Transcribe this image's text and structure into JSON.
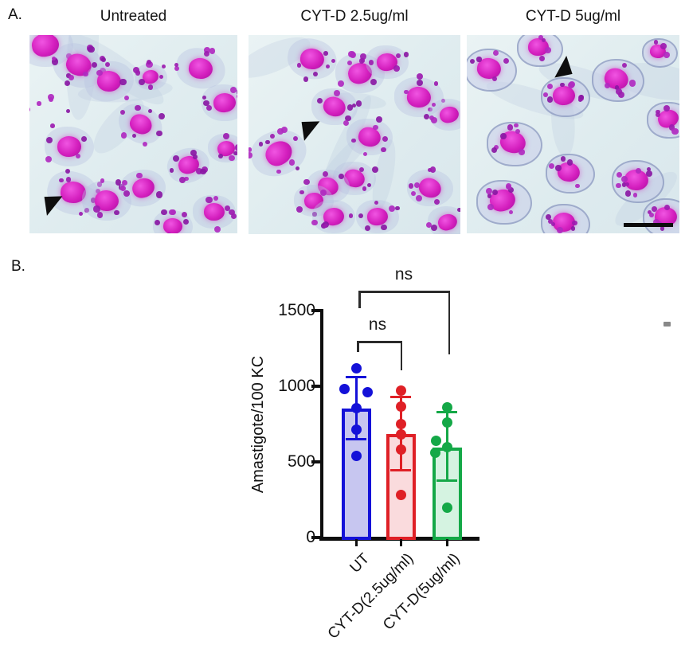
{
  "figure_labels": {
    "panel_a": "A.",
    "panel_b": "B."
  },
  "panel_a": {
    "images": [
      {
        "title": "Untreated",
        "has_arrowhead": true,
        "has_scale_bar": false
      },
      {
        "title": "CYT-D 2.5ug/ml",
        "has_arrowhead": true,
        "has_scale_bar": false
      },
      {
        "title": "CYT-D 5ug/ml",
        "has_arrowhead": true,
        "has_scale_bar": true
      }
    ],
    "stain_description": "Giemsa-stained kupffer cells with intracellular amastigotes (magenta nuclei, purple dots)"
  },
  "chart_data": {
    "type": "bar",
    "title": "",
    "xlabel": "",
    "ylabel": "Amastigote/100 KC",
    "ylim": [
      0,
      1500
    ],
    "yticks": [
      1500,
      1000,
      500,
      0
    ],
    "grid": false,
    "legend": null,
    "categories": [
      "UT",
      "CYT-D(2.5ug/ml)",
      "CYT-D(5ug/ml)"
    ],
    "series": [
      {
        "name": "UT",
        "mean": 855,
        "err_low": 655,
        "err_high": 1065,
        "bar_color": "#1411d8",
        "fill_color": "#c7c6f0",
        "points": [
          {
            "v": 1120,
            "dx": 0
          },
          {
            "v": 980,
            "dx": -15
          },
          {
            "v": 958,
            "dx": 14
          },
          {
            "v": 853,
            "dx": 0
          },
          {
            "v": 715,
            "dx": 0
          },
          {
            "v": 542,
            "dx": 0
          }
        ]
      },
      {
        "name": "CYT-D(2.5ug/ml)",
        "mean": 685,
        "err_low": 445,
        "err_high": 930,
        "bar_color": "#df2026",
        "fill_color": "#fadbdd",
        "points": [
          {
            "v": 973,
            "dx": 0
          },
          {
            "v": 868,
            "dx": 0
          },
          {
            "v": 752,
            "dx": 0
          },
          {
            "v": 679,
            "dx": 0
          },
          {
            "v": 584,
            "dx": 0
          },
          {
            "v": 279,
            "dx": 0
          }
        ]
      },
      {
        "name": "CYT-D(5ug/ml)",
        "mean": 595,
        "err_low": 380,
        "err_high": 830,
        "bar_color": "#14a847",
        "fill_color": "#d5f3e1",
        "points": [
          {
            "v": 858,
            "dx": 0
          },
          {
            "v": 763,
            "dx": 0
          },
          {
            "v": 642,
            "dx": -14
          },
          {
            "v": 595,
            "dx": 0
          },
          {
            "v": 563,
            "dx": -15
          },
          {
            "v": 200,
            "dx": 0
          }
        ]
      }
    ],
    "significance": [
      {
        "label": "ns",
        "pair": [
          "UT",
          "CYT-D(2.5ug/ml)"
        ]
      },
      {
        "label": "ns",
        "pair": [
          "UT",
          "CYT-D(5ug/ml)"
        ]
      }
    ]
  }
}
